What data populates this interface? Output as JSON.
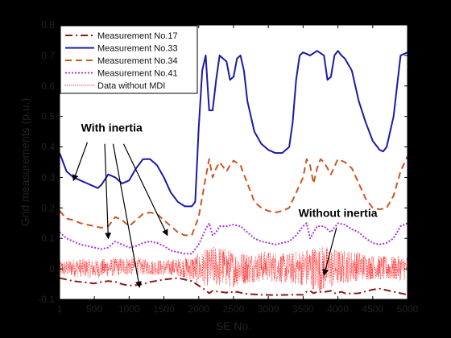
{
  "chart_data": {
    "type": "line",
    "xlabel": "SE No.",
    "ylabel": "Grid measurements (p.u.)",
    "xlim": [
      1,
      5000
    ],
    "ylim": [
      -0.1,
      0.8
    ],
    "x_ticks": [
      "1",
      "500",
      "1000",
      "1500",
      "2000",
      "2500",
      "3000",
      "3500",
      "4000",
      "4500",
      "5000"
    ],
    "y_ticks": [
      "-0.1",
      "0",
      "0.1",
      "0.2",
      "0.3",
      "0.4",
      "0.5",
      "0.6",
      "0.7",
      "0.8"
    ],
    "grid": false,
    "legend_position": "top-left",
    "series": [
      {
        "name": "Measurement No.17",
        "color": "#8b1a1a",
        "style": "dashdot",
        "x": [
          1,
          200,
          400,
          500,
          600,
          700,
          800,
          900,
          1000,
          1100,
          1200,
          1300,
          1500,
          1700,
          1800,
          1900,
          2000,
          2100,
          2150,
          2200,
          2300,
          2400,
          2450,
          2500,
          2550,
          2600,
          2700,
          2900,
          3100,
          3300,
          3500,
          3550,
          3600,
          3650,
          3700,
          3800,
          3900,
          3950,
          4000,
          4050,
          4100,
          4200,
          4300,
          4500,
          4600,
          4700,
          4800,
          4900,
          5000
        ],
        "y": [
          -0.03,
          -0.04,
          -0.045,
          -0.048,
          -0.043,
          -0.04,
          -0.042,
          -0.05,
          -0.055,
          -0.053,
          -0.05,
          -0.043,
          -0.035,
          -0.03,
          -0.035,
          -0.04,
          -0.055,
          -0.07,
          -0.08,
          -0.072,
          -0.075,
          -0.078,
          -0.074,
          -0.079,
          -0.075,
          -0.078,
          -0.082,
          -0.085,
          -0.086,
          -0.085,
          -0.085,
          -0.075,
          -0.072,
          -0.08,
          -0.075,
          -0.076,
          -0.072,
          -0.08,
          -0.078,
          -0.075,
          -0.08,
          -0.081,
          -0.08,
          -0.068,
          -0.065,
          -0.07,
          -0.075,
          -0.08,
          -0.085
        ]
      },
      {
        "name": "Measurement No.33",
        "color": "#1a1aaa",
        "style": "solid",
        "x": [
          1,
          100,
          200,
          300,
          400,
          500,
          550,
          600,
          700,
          800,
          900,
          1000,
          1100,
          1200,
          1300,
          1400,
          1500,
          1600,
          1700,
          1800,
          1900,
          1950,
          2000,
          2050,
          2100,
          2150,
          2200,
          2250,
          2300,
          2350,
          2400,
          2450,
          2500,
          2550,
          2600,
          2650,
          2700,
          2800,
          2900,
          3000,
          3100,
          3200,
          3300,
          3350,
          3400,
          3450,
          3500,
          3600,
          3700,
          3800,
          3850,
          3900,
          3950,
          4000,
          4050,
          4100,
          4200,
          4300,
          4400,
          4500,
          4600,
          4650,
          4700,
          4800,
          4900,
          5000
        ],
        "y": [
          0.38,
          0.32,
          0.3,
          0.29,
          0.28,
          0.27,
          0.265,
          0.275,
          0.31,
          0.3,
          0.28,
          0.29,
          0.33,
          0.36,
          0.36,
          0.34,
          0.3,
          0.25,
          0.22,
          0.205,
          0.205,
          0.22,
          0.46,
          0.65,
          0.7,
          0.52,
          0.52,
          0.62,
          0.7,
          0.69,
          0.68,
          0.62,
          0.63,
          0.69,
          0.7,
          0.65,
          0.55,
          0.45,
          0.41,
          0.39,
          0.38,
          0.38,
          0.4,
          0.48,
          0.62,
          0.7,
          0.71,
          0.7,
          0.715,
          0.7,
          0.62,
          0.63,
          0.7,
          0.715,
          0.7,
          0.69,
          0.65,
          0.55,
          0.48,
          0.42,
          0.39,
          0.385,
          0.4,
          0.5,
          0.7,
          0.71
        ]
      },
      {
        "name": "Measurement No.34",
        "color": "#cc5522",
        "style": "dashed",
        "x": [
          1,
          100,
          200,
          300,
          400,
          500,
          600,
          700,
          800,
          900,
          1000,
          1100,
          1200,
          1300,
          1400,
          1500,
          1600,
          1700,
          1800,
          1900,
          2000,
          2100,
          2150,
          2200,
          2250,
          2300,
          2400,
          2450,
          2500,
          2600,
          2700,
          2800,
          2900,
          3000,
          3100,
          3200,
          3300,
          3400,
          3500,
          3550,
          3600,
          3650,
          3700,
          3750,
          3800,
          3900,
          4000,
          4100,
          4200,
          4300,
          4400,
          4500,
          4600,
          4700,
          4800,
          4900,
          5000
        ],
        "y": [
          0.19,
          0.165,
          0.16,
          0.15,
          0.145,
          0.14,
          0.135,
          0.14,
          0.17,
          0.16,
          0.14,
          0.16,
          0.18,
          0.185,
          0.18,
          0.16,
          0.14,
          0.12,
          0.11,
          0.11,
          0.17,
          0.3,
          0.36,
          0.3,
          0.33,
          0.35,
          0.32,
          0.34,
          0.355,
          0.34,
          0.28,
          0.22,
          0.2,
          0.19,
          0.185,
          0.19,
          0.2,
          0.25,
          0.3,
          0.36,
          0.34,
          0.28,
          0.33,
          0.36,
          0.35,
          0.31,
          0.36,
          0.35,
          0.33,
          0.28,
          0.23,
          0.2,
          0.195,
          0.2,
          0.24,
          0.32,
          0.37
        ]
      },
      {
        "name": "Measurement No.41",
        "color": "#b030e0",
        "style": "dotted",
        "x": [
          1,
          100,
          200,
          300,
          400,
          500,
          600,
          700,
          800,
          900,
          1000,
          1100,
          1200,
          1300,
          1400,
          1500,
          1600,
          1700,
          1800,
          1900,
          2000,
          2100,
          2150,
          2200,
          2250,
          2300,
          2400,
          2500,
          2600,
          2700,
          2800,
          2900,
          3000,
          3100,
          3200,
          3300,
          3400,
          3500,
          3550,
          3600,
          3650,
          3700,
          3800,
          3900,
          4000,
          4100,
          4200,
          4300,
          4400,
          4500,
          4600,
          4700,
          4800,
          4900,
          5000
        ],
        "y": [
          0.12,
          0.1,
          0.09,
          0.08,
          0.075,
          0.07,
          0.065,
          0.07,
          0.09,
          0.08,
          0.07,
          0.075,
          0.085,
          0.09,
          0.085,
          0.075,
          0.06,
          0.055,
          0.05,
          0.05,
          0.08,
          0.13,
          0.15,
          0.11,
          0.12,
          0.14,
          0.14,
          0.145,
          0.14,
          0.12,
          0.1,
          0.09,
          0.085,
          0.08,
          0.085,
          0.09,
          0.11,
          0.14,
          0.15,
          0.1,
          0.12,
          0.14,
          0.14,
          0.12,
          0.15,
          0.145,
          0.13,
          0.12,
          0.1,
          0.085,
          0.08,
          0.085,
          0.1,
          0.14,
          0.15
        ]
      },
      {
        "name": "Data without MDI",
        "color": "#ff3030",
        "style": "dotted-noisy",
        "x": [
          1,
          250,
          500,
          750,
          1000,
          1250,
          1500,
          1750,
          2000,
          2250,
          2500,
          2750,
          3000,
          3250,
          3500,
          3750,
          4000,
          4250,
          4500,
          4750,
          5000
        ],
        "y": [
          0.0,
          0.005,
          0.0,
          0.005,
          0.01,
          0.005,
          0.005,
          0.005,
          0.0,
          0.01,
          0.0,
          0.005,
          0.01,
          0.0,
          0.005,
          0.0,
          0.005,
          0.01,
          0.005,
          0.0,
          0.005
        ],
        "noise_amplitude": [
          0.025,
          0.03,
          0.03,
          0.03,
          0.03,
          0.025,
          0.025,
          0.03,
          0.05,
          0.07,
          0.06,
          0.05,
          0.05,
          0.05,
          0.06,
          0.08,
          0.06,
          0.05,
          0.04,
          0.04,
          0.04
        ]
      }
    ],
    "annotations": [
      {
        "text": "With inertia",
        "targets": [
          [
            200,
            0.29
          ],
          [
            700,
            0.1
          ],
          [
            1150,
            -0.06
          ],
          [
            1550,
            0.11
          ]
        ]
      },
      {
        "text": "Without inertia",
        "targets": [
          [
            3800,
            -0.02
          ]
        ]
      }
    ]
  }
}
